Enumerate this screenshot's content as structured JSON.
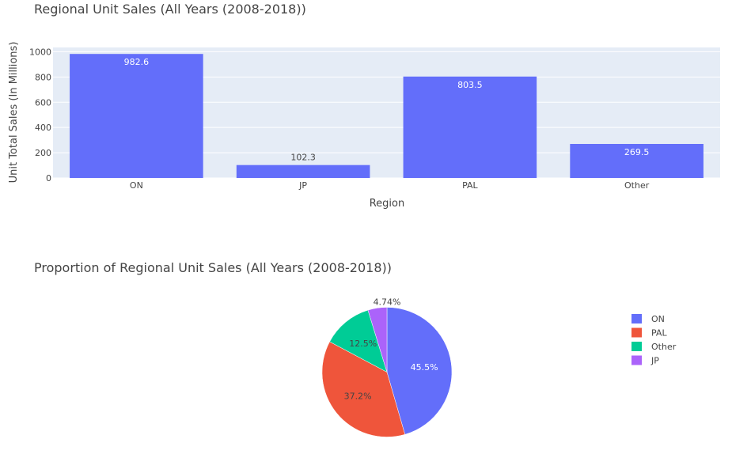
{
  "chart_data": [
    {
      "type": "bar",
      "title": "Regional Unit Sales (All Years (2008-2018))",
      "xlabel": "Region",
      "ylabel": "Unit Total Sales (In Millions)",
      "categories": [
        "ON",
        "JP",
        "PAL",
        "Other"
      ],
      "values": [
        982.6,
        102.3,
        803.5,
        269.5
      ],
      "data_labels": [
        "982.6",
        "102.3",
        "803.5",
        "269.5"
      ],
      "yticks": [
        0,
        200,
        400,
        600,
        800,
        1000
      ],
      "ylim": [
        0,
        1034
      ],
      "grid": true,
      "color": "#636efa"
    },
    {
      "type": "pie",
      "title": "Proportion of Regional Unit Sales (All Years (2008-2018))",
      "labels": [
        "ON",
        "PAL",
        "Other",
        "JP"
      ],
      "values": [
        982.6,
        803.5,
        269.5,
        102.3
      ],
      "percent_labels": [
        "45.5%",
        "37.2%",
        "12.5%",
        "4.74%"
      ],
      "colors": [
        "#636efa",
        "#ef553b",
        "#00cc96",
        "#ab63fa"
      ],
      "legend_position": "right"
    }
  ]
}
